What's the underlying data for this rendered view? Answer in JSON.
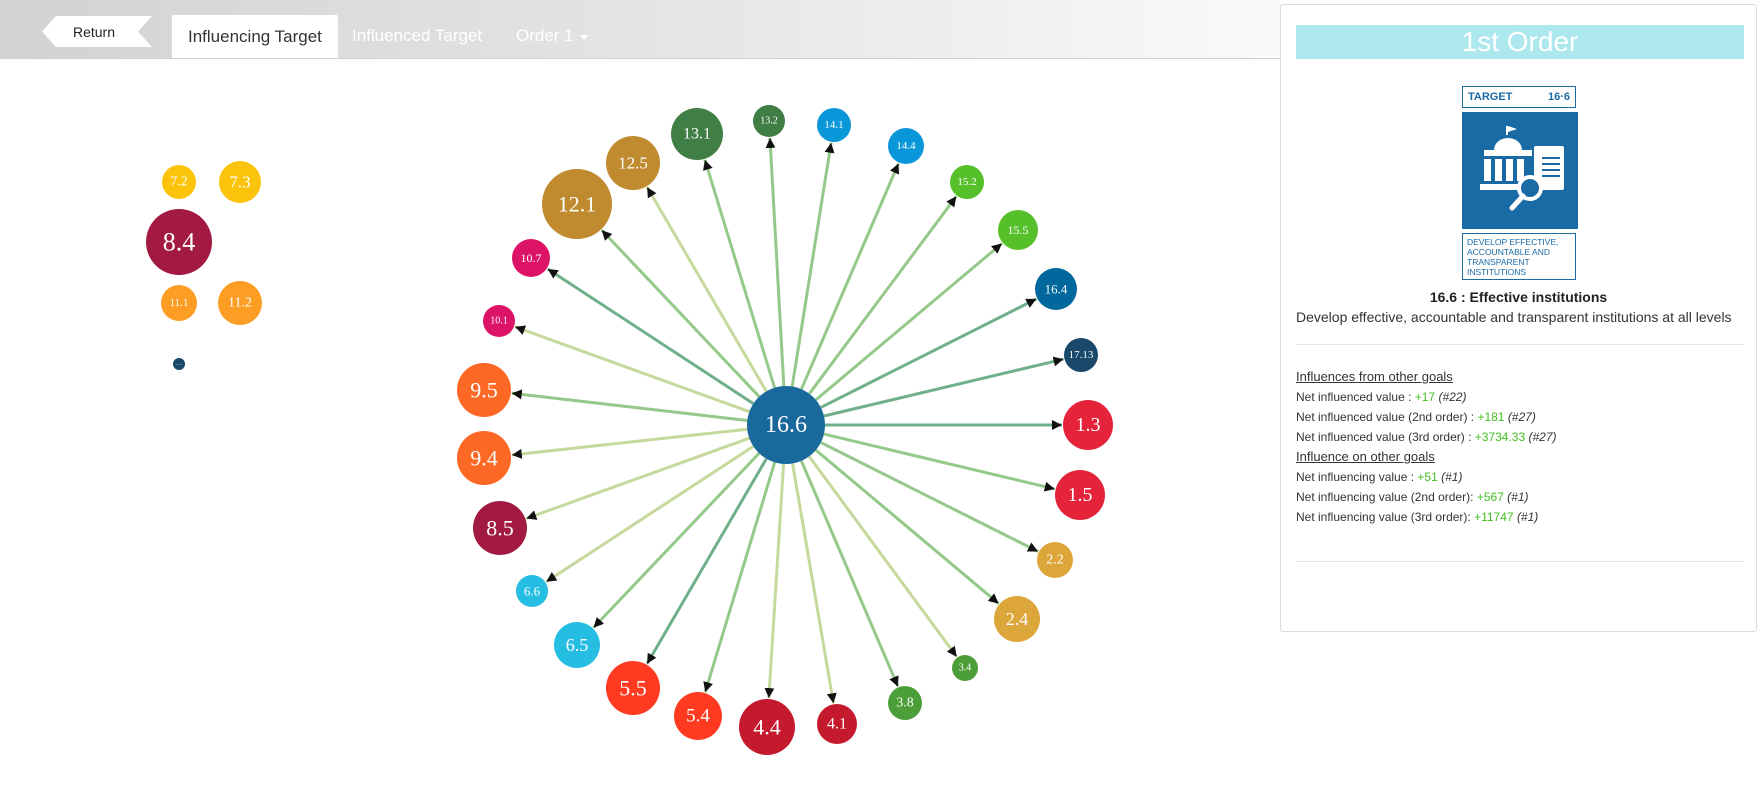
{
  "nav": {
    "return_label": "Return",
    "tabs": [
      {
        "label": "Influencing Target",
        "active": true
      },
      {
        "label": "Influenced Target",
        "active": false
      },
      {
        "label": "Order 1",
        "active": false,
        "dropdown": true
      }
    ]
  },
  "graph": {
    "center": {
      "label": "16.6",
      "color": "#19699c"
    },
    "edge_colors": {
      "dark": "#6fb08a",
      "mid": "#94c98a",
      "light": "#c6d99c"
    },
    "ring": [
      {
        "label": "13.2",
        "color": "#3f7e44",
        "strength": "mid"
      },
      {
        "label": "14.1",
        "color": "#0a97d9",
        "strength": "mid"
      },
      {
        "label": "14.4",
        "color": "#0a97d9",
        "strength": "mid"
      },
      {
        "label": "15.2",
        "color": "#56c02b",
        "strength": "mid"
      },
      {
        "label": "15.5",
        "color": "#56c02b",
        "strength": "mid"
      },
      {
        "label": "16.4",
        "color": "#00689d",
        "strength": "dark"
      },
      {
        "label": "17.13",
        "color": "#19486a",
        "strength": "dark"
      },
      {
        "label": "1.3",
        "color": "#e5243b",
        "strength": "dark"
      },
      {
        "label": "1.5",
        "color": "#e5243b",
        "strength": "mid"
      },
      {
        "label": "2.2",
        "color": "#dda63a",
        "strength": "mid"
      },
      {
        "label": "2.4",
        "color": "#dda63a",
        "strength": "mid"
      },
      {
        "label": "3.4",
        "color": "#4c9f38",
        "strength": "light"
      },
      {
        "label": "3.8",
        "color": "#4c9f38",
        "strength": "mid"
      },
      {
        "label": "4.1",
        "color": "#c5192d",
        "strength": "light"
      },
      {
        "label": "4.4",
        "color": "#c5192d",
        "strength": "light"
      },
      {
        "label": "5.4",
        "color": "#ff3a21",
        "strength": "mid"
      },
      {
        "label": "5.5",
        "color": "#ff3a21",
        "strength": "dark"
      },
      {
        "label": "6.5",
        "color": "#26bde2",
        "strength": "mid"
      },
      {
        "label": "6.6",
        "color": "#26bde2",
        "strength": "light"
      },
      {
        "label": "8.5",
        "color": "#a21942",
        "strength": "light"
      },
      {
        "label": "9.4",
        "color": "#fd6925",
        "strength": "light"
      },
      {
        "label": "9.5",
        "color": "#fd6925",
        "strength": "mid"
      },
      {
        "label": "10.1",
        "color": "#dd1367",
        "strength": "light"
      },
      {
        "label": "10.7",
        "color": "#dd1367",
        "strength": "dark"
      },
      {
        "label": "12.1",
        "color": "#bf8b2e",
        "strength": "mid"
      },
      {
        "label": "12.5",
        "color": "#bf8b2e",
        "strength": "light"
      },
      {
        "label": "13.1",
        "color": "#3f7e44",
        "strength": "mid"
      }
    ],
    "cluster": [
      {
        "label": "7.2",
        "color": "#fcc30b"
      },
      {
        "label": "7.3",
        "color": "#fcc30b"
      },
      {
        "label": "8.4",
        "color": "#a21942"
      },
      {
        "label": "11.1",
        "color": "#fd9d24"
      },
      {
        "label": "11.2",
        "color": "#fd9d24"
      },
      {
        "label": "…",
        "color": "#19486a"
      }
    ]
  },
  "panel": {
    "title": "1st Order",
    "icon": {
      "head_left": "TARGET",
      "head_right": "16·6",
      "desc": "Develop effective, accountable and transparent institutions"
    },
    "target_name": "16.6 : Effective institutions",
    "target_desc": "Develop effective, accountable and transparent institutions at all levels",
    "influences_from_heading": "Influences from other goals",
    "influence_on_heading": "Influence on other goals",
    "rows": [
      {
        "label": "Net influenced value : ",
        "value": "+17",
        "rank": "(#22)"
      },
      {
        "label": "Net influenced value (2nd order) : ",
        "value": "+181",
        "rank": "(#27)"
      },
      {
        "label": "Net influenced value (3rd order) : ",
        "value": "+3734.33",
        "rank": "(#27)"
      },
      {
        "label": "Net influencing value : ",
        "value": "+51",
        "rank": "(#1)"
      },
      {
        "label": "Net influencing value (2nd order): ",
        "value": "+567",
        "rank": "(#1)"
      },
      {
        "label": "Net influencing value (3rd order): ",
        "value": "+11747",
        "rank": "(#1)"
      }
    ]
  }
}
